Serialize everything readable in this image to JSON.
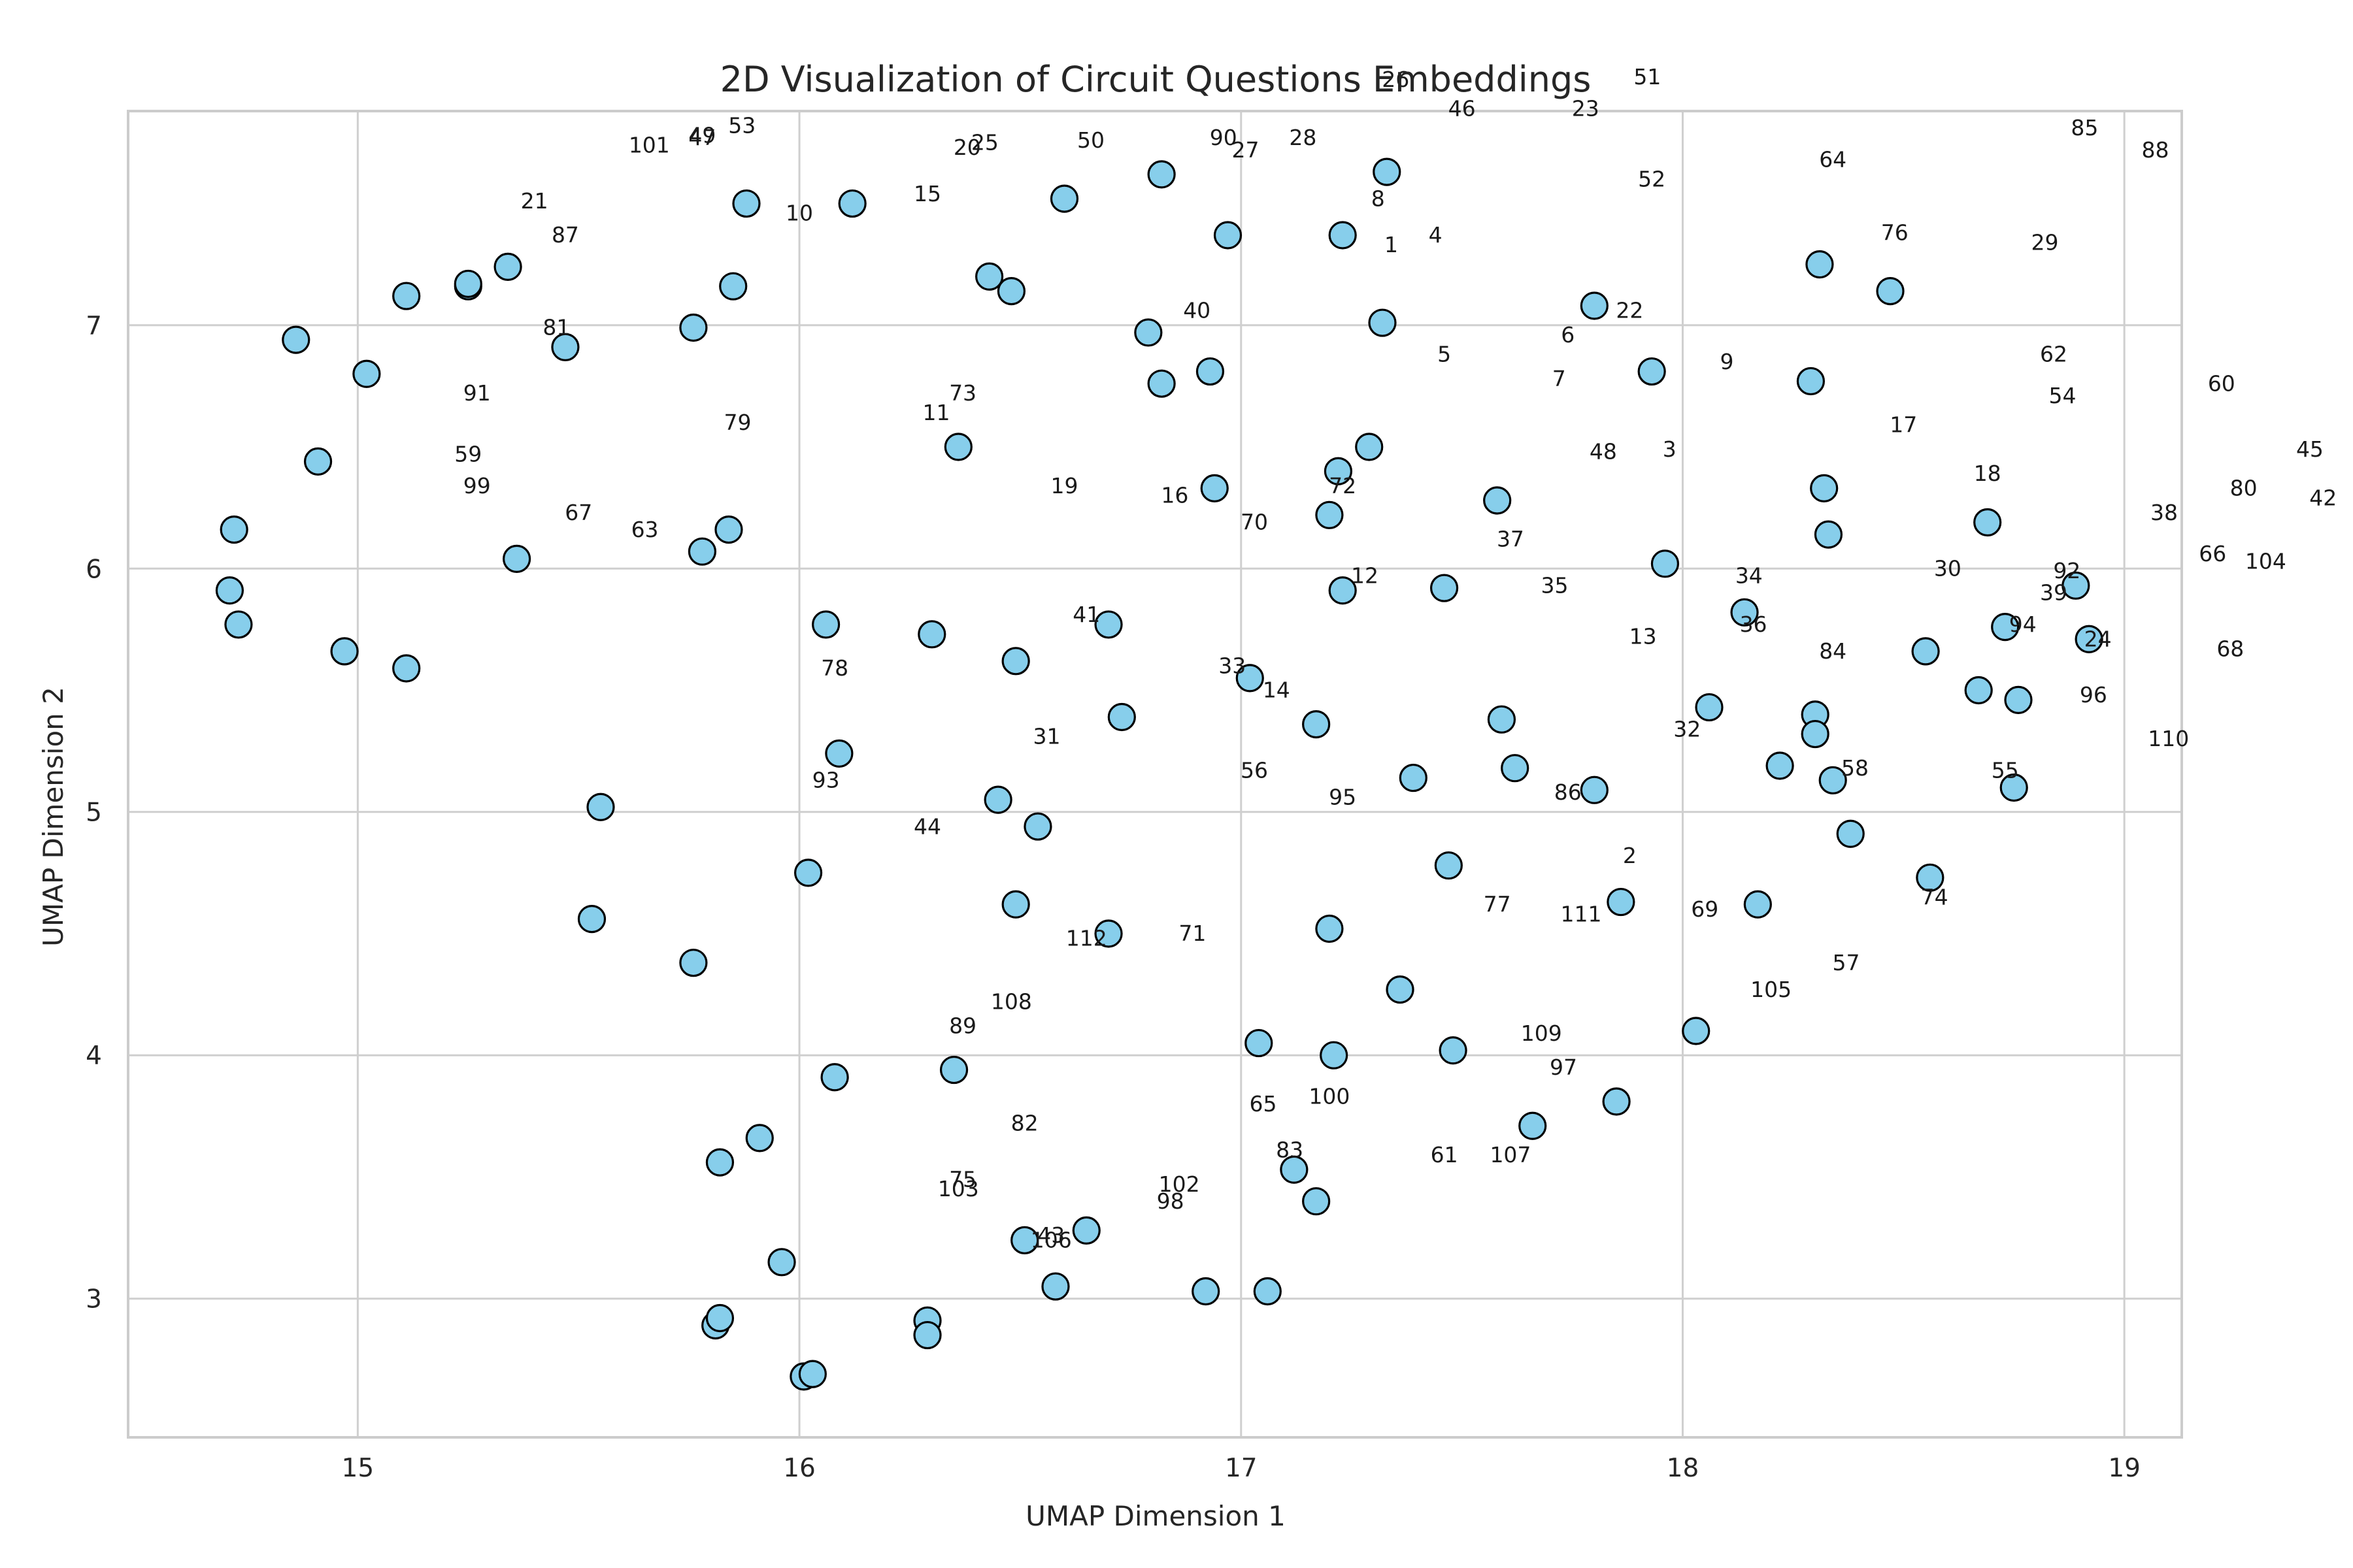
{
  "chart_data": {
    "type": "scatter",
    "title": "2D Visualization of Circuit Questions Embeddings",
    "xlabel": "UMAP Dimension 1",
    "ylabel": "UMAP Dimension 2",
    "xlim": [
      14.48,
      19.13
    ],
    "ylim": [
      2.43,
      7.88
    ],
    "xticks": [
      15,
      16,
      17,
      18,
      19
    ],
    "yticks": [
      3,
      4,
      5,
      6,
      7
    ],
    "grid": true,
    "colors": {
      "marker_fill": "#87ceeb",
      "marker_edge": "#000000",
      "grid": "#cfcfcf",
      "frame": "#cccccc"
    },
    "points": [
      {
        "x": 14.71,
        "y": 5.91
      },
      {
        "x": 14.72,
        "y": 6.16
      },
      {
        "x": 14.73,
        "y": 5.77
      },
      {
        "x": 14.86,
        "y": 6.94
      },
      {
        "x": 14.91,
        "y": 6.44
      },
      {
        "x": 14.97,
        "y": 5.66
      },
      {
        "x": 15.02,
        "y": 6.8
      },
      {
        "x": 15.11,
        "y": 5.59
      },
      {
        "x": 15.11,
        "y": 7.12
      },
      {
        "x": 15.25,
        "y": 7.16
      },
      {
        "x": 15.25,
        "y": 7.17
      },
      {
        "x": 15.34,
        "y": 7.24
      },
      {
        "x": 15.36,
        "y": 6.04
      },
      {
        "x": 15.47,
        "y": 6.91
      },
      {
        "x": 15.53,
        "y": 4.56
      },
      {
        "x": 15.55,
        "y": 5.02
      },
      {
        "x": 15.76,
        "y": 6.99
      },
      {
        "x": 15.76,
        "y": 4.38
      },
      {
        "x": 15.78,
        "y": 6.07
      },
      {
        "x": 15.81,
        "y": 2.89
      },
      {
        "x": 15.82,
        "y": 2.92
      },
      {
        "x": 15.82,
        "y": 3.56
      },
      {
        "x": 15.84,
        "y": 6.16
      },
      {
        "x": 15.85,
        "y": 7.16
      },
      {
        "x": 15.88,
        "y": 7.5
      },
      {
        "x": 15.91,
        "y": 3.66
      },
      {
        "x": 15.96,
        "y": 3.15
      },
      {
        "x": 16.01,
        "y": 2.68
      },
      {
        "x": 16.02,
        "y": 4.75
      },
      {
        "x": 16.03,
        "y": 2.69
      },
      {
        "x": 16.06,
        "y": 5.77
      },
      {
        "x": 16.08,
        "y": 3.91
      },
      {
        "x": 16.09,
        "y": 5.24
      },
      {
        "x": 16.12,
        "y": 7.5
      },
      {
        "x": 16.29,
        "y": 2.91
      },
      {
        "x": 16.29,
        "y": 2.85
      },
      {
        "x": 16.3,
        "y": 5.73
      },
      {
        "x": 16.35,
        "y": 3.94
      },
      {
        "x": 16.36,
        "y": 6.5
      },
      {
        "x": 16.43,
        "y": 7.2
      },
      {
        "x": 16.45,
        "y": 5.05
      },
      {
        "x": 16.48,
        "y": 7.14
      },
      {
        "x": 16.49,
        "y": 5.62
      },
      {
        "x": 16.49,
        "y": 4.62
      },
      {
        "x": 16.51,
        "y": 3.24
      },
      {
        "x": 16.54,
        "y": 4.94
      },
      {
        "x": 16.58,
        "y": 3.05
      },
      {
        "x": 16.6,
        "y": 7.52
      },
      {
        "x": 16.65,
        "y": 3.28
      },
      {
        "x": 16.7,
        "y": 5.77
      },
      {
        "x": 16.7,
        "y": 4.5
      },
      {
        "x": 16.73,
        "y": 5.39
      },
      {
        "x": 16.79,
        "y": 6.97
      },
      {
        "x": 16.82,
        "y": 6.76
      },
      {
        "x": 16.82,
        "y": 7.62
      },
      {
        "x": 16.92,
        "y": 3.03
      },
      {
        "x": 16.93,
        "y": 6.81
      },
      {
        "x": 16.94,
        "y": 6.33
      },
      {
        "x": 16.97,
        "y": 7.37
      },
      {
        "x": 17.02,
        "y": 5.55
      },
      {
        "x": 17.04,
        "y": 4.05
      },
      {
        "x": 17.06,
        "y": 3.03
      },
      {
        "x": 17.12,
        "y": 3.53
      },
      {
        "x": 17.17,
        "y": 5.36
      },
      {
        "x": 17.17,
        "y": 3.4
      },
      {
        "x": 17.2,
        "y": 6.22
      },
      {
        "x": 17.2,
        "y": 4.52
      },
      {
        "x": 17.21,
        "y": 4.0
      },
      {
        "x": 17.22,
        "y": 6.4
      },
      {
        "x": 17.23,
        "y": 5.91
      },
      {
        "x": 17.23,
        "y": 7.37
      },
      {
        "x": 17.29,
        "y": 6.5
      },
      {
        "x": 17.32,
        "y": 7.01
      },
      {
        "x": 17.33,
        "y": 7.63
      },
      {
        "x": 17.36,
        "y": 4.27
      },
      {
        "x": 17.39,
        "y": 5.14
      },
      {
        "x": 17.46,
        "y": 5.92
      },
      {
        "x": 17.47,
        "y": 4.78
      },
      {
        "x": 17.48,
        "y": 4.02
      },
      {
        "x": 17.58,
        "y": 6.28
      },
      {
        "x": 17.59,
        "y": 5.38
      },
      {
        "x": 17.62,
        "y": 5.18
      },
      {
        "x": 17.66,
        "y": 3.71
      },
      {
        "x": 17.8,
        "y": 5.09
      },
      {
        "x": 17.8,
        "y": 7.08
      },
      {
        "x": 17.85,
        "y": 3.81
      },
      {
        "x": 17.86,
        "y": 4.63
      },
      {
        "x": 17.93,
        "y": 6.81
      },
      {
        "x": 17.96,
        "y": 6.02
      },
      {
        "x": 18.03,
        "y": 4.1
      },
      {
        "x": 18.06,
        "y": 5.43
      },
      {
        "x": 18.14,
        "y": 5.82
      },
      {
        "x": 18.17,
        "y": 4.62
      },
      {
        "x": 18.22,
        "y": 5.19
      },
      {
        "x": 18.29,
        "y": 6.77
      },
      {
        "x": 18.3,
        "y": 5.4
      },
      {
        "x": 18.3,
        "y": 5.32
      },
      {
        "x": 18.31,
        "y": 7.25
      },
      {
        "x": 18.32,
        "y": 6.33
      },
      {
        "x": 18.33,
        "y": 6.14
      },
      {
        "x": 18.34,
        "y": 5.13
      },
      {
        "x": 18.38,
        "y": 4.91
      },
      {
        "x": 18.47,
        "y": 7.14
      },
      {
        "x": 18.55,
        "y": 5.66
      },
      {
        "x": 18.56,
        "y": 4.73
      },
      {
        "x": 18.67,
        "y": 5.5
      },
      {
        "x": 18.69,
        "y": 6.19
      },
      {
        "x": 18.73,
        "y": 5.76
      },
      {
        "x": 18.75,
        "y": 5.1
      },
      {
        "x": 18.76,
        "y": 5.46
      },
      {
        "x": 18.89,
        "y": 5.93
      },
      {
        "x": 18.92,
        "y": 5.71
      }
    ],
    "annotations": [
      {
        "text": "25",
        "x": 16.42,
        "y": 7.72
      },
      {
        "text": "50",
        "x": 16.66,
        "y": 7.73
      },
      {
        "text": "28",
        "x": 17.14,
        "y": 7.74
      },
      {
        "text": "26",
        "x": 17.35,
        "y": 7.98
      },
      {
        "text": "51",
        "x": 17.92,
        "y": 7.99
      },
      {
        "text": "46",
        "x": 17.5,
        "y": 7.86
      },
      {
        "text": "23",
        "x": 17.78,
        "y": 7.86
      },
      {
        "text": "53",
        "x": 15.87,
        "y": 7.79
      },
      {
        "text": "49",
        "x": 15.78,
        "y": 7.75
      },
      {
        "text": "47",
        "x": 15.78,
        "y": 7.74
      },
      {
        "text": "101",
        "x": 15.66,
        "y": 7.71
      },
      {
        "text": "20",
        "x": 16.38,
        "y": 7.7
      },
      {
        "text": "90",
        "x": 16.96,
        "y": 7.74
      },
      {
        "text": "27",
        "x": 17.01,
        "y": 7.69
      },
      {
        "text": "85",
        "x": 18.91,
        "y": 7.78
      },
      {
        "text": "88",
        "x": 19.07,
        "y": 7.69
      },
      {
        "text": "64",
        "x": 18.34,
        "y": 7.65
      },
      {
        "text": "52",
        "x": 17.93,
        "y": 7.57
      },
      {
        "text": "21",
        "x": 15.4,
        "y": 7.48
      },
      {
        "text": "15",
        "x": 16.29,
        "y": 7.51
      },
      {
        "text": "10",
        "x": 16.0,
        "y": 7.43
      },
      {
        "text": "8",
        "x": 17.31,
        "y": 7.49
      },
      {
        "text": "87",
        "x": 15.47,
        "y": 7.34
      },
      {
        "text": "76",
        "x": 18.48,
        "y": 7.35
      },
      {
        "text": "4",
        "x": 17.44,
        "y": 7.34
      },
      {
        "text": "29",
        "x": 18.82,
        "y": 7.31
      },
      {
        "text": "1",
        "x": 17.34,
        "y": 7.3
      },
      {
        "text": "40",
        "x": 16.9,
        "y": 7.03
      },
      {
        "text": "22",
        "x": 17.88,
        "y": 7.03
      },
      {
        "text": "81",
        "x": 15.45,
        "y": 6.96
      },
      {
        "text": "6",
        "x": 17.74,
        "y": 6.93
      },
      {
        "text": "5",
        "x": 17.46,
        "y": 6.85
      },
      {
        "text": "62",
        "x": 18.84,
        "y": 6.85
      },
      {
        "text": "9",
        "x": 18.1,
        "y": 6.82
      },
      {
        "text": "91",
        "x": 15.27,
        "y": 6.69
      },
      {
        "text": "7",
        "x": 17.72,
        "y": 6.75
      },
      {
        "text": "73",
        "x": 16.37,
        "y": 6.69
      },
      {
        "text": "60",
        "x": 19.22,
        "y": 6.73
      },
      {
        "text": "54",
        "x": 18.86,
        "y": 6.68
      },
      {
        "text": "11",
        "x": 16.31,
        "y": 6.61
      },
      {
        "text": "79",
        "x": 15.86,
        "y": 6.57
      },
      {
        "text": "17",
        "x": 18.5,
        "y": 6.56
      },
      {
        "text": "45",
        "x": 19.42,
        "y": 6.46
      },
      {
        "text": "3",
        "x": 17.97,
        "y": 6.46
      },
      {
        "text": "59",
        "x": 15.25,
        "y": 6.44
      },
      {
        "text": "48",
        "x": 17.82,
        "y": 6.45
      },
      {
        "text": "18",
        "x": 18.69,
        "y": 6.36
      },
      {
        "text": "99",
        "x": 15.27,
        "y": 6.31
      },
      {
        "text": "19",
        "x": 16.6,
        "y": 6.31
      },
      {
        "text": "80",
        "x": 19.27,
        "y": 6.3
      },
      {
        "text": "72",
        "x": 17.23,
        "y": 6.31
      },
      {
        "text": "42",
        "x": 19.45,
        "y": 6.26
      },
      {
        "text": "16",
        "x": 16.85,
        "y": 6.27
      },
      {
        "text": "67",
        "x": 15.5,
        "y": 6.2
      },
      {
        "text": "38",
        "x": 19.09,
        "y": 6.2
      },
      {
        "text": "70",
        "x": 17.03,
        "y": 6.16
      },
      {
        "text": "63",
        "x": 15.65,
        "y": 6.13
      },
      {
        "text": "37",
        "x": 17.61,
        "y": 6.09
      },
      {
        "text": "66",
        "x": 19.2,
        "y": 6.03
      },
      {
        "text": "104",
        "x": 19.32,
        "y": 6.0
      },
      {
        "text": "30",
        "x": 18.6,
        "y": 5.97
      },
      {
        "text": "92",
        "x": 18.87,
        "y": 5.96
      },
      {
        "text": "12",
        "x": 17.28,
        "y": 5.94
      },
      {
        "text": "34",
        "x": 18.15,
        "y": 5.94
      },
      {
        "text": "35",
        "x": 17.71,
        "y": 5.9
      },
      {
        "text": "39",
        "x": 18.84,
        "y": 5.87
      },
      {
        "text": "41",
        "x": 16.65,
        "y": 5.78
      },
      {
        "text": "94",
        "x": 18.77,
        "y": 5.74
      },
      {
        "text": "36",
        "x": 18.16,
        "y": 5.74
      },
      {
        "text": "13",
        "x": 17.91,
        "y": 5.69
      },
      {
        "text": "24",
        "x": 18.94,
        "y": 5.68
      },
      {
        "text": "68",
        "x": 19.24,
        "y": 5.64
      },
      {
        "text": "84",
        "x": 18.34,
        "y": 5.63
      },
      {
        "text": "33",
        "x": 16.98,
        "y": 5.57
      },
      {
        "text": "78",
        "x": 16.08,
        "y": 5.56
      },
      {
        "text": "14",
        "x": 17.08,
        "y": 5.47
      },
      {
        "text": "96",
        "x": 18.93,
        "y": 5.45
      },
      {
        "text": "31",
        "x": 16.56,
        "y": 5.28
      },
      {
        "text": "32",
        "x": 18.01,
        "y": 5.31
      },
      {
        "text": "110",
        "x": 19.1,
        "y": 5.27
      },
      {
        "text": "58",
        "x": 18.39,
        "y": 5.15
      },
      {
        "text": "55",
        "x": 18.73,
        "y": 5.14
      },
      {
        "text": "56",
        "x": 17.03,
        "y": 5.14
      },
      {
        "text": "93",
        "x": 16.06,
        "y": 5.1
      },
      {
        "text": "86",
        "x": 17.74,
        "y": 5.05
      },
      {
        "text": "95",
        "x": 17.23,
        "y": 5.03
      },
      {
        "text": "44",
        "x": 16.29,
        "y": 4.91
      },
      {
        "text": "2",
        "x": 17.88,
        "y": 4.79
      },
      {
        "text": "74",
        "x": 18.57,
        "y": 4.62
      },
      {
        "text": "77",
        "x": 17.58,
        "y": 4.59
      },
      {
        "text": "111",
        "x": 17.77,
        "y": 4.55
      },
      {
        "text": "69",
        "x": 18.05,
        "y": 4.57
      },
      {
        "text": "71",
        "x": 16.89,
        "y": 4.47
      },
      {
        "text": "112",
        "x": 16.65,
        "y": 4.45
      },
      {
        "text": "57",
        "x": 18.37,
        "y": 4.35
      },
      {
        "text": "105",
        "x": 18.2,
        "y": 4.24
      },
      {
        "text": "108",
        "x": 16.48,
        "y": 4.19
      },
      {
        "text": "89",
        "x": 16.37,
        "y": 4.09
      },
      {
        "text": "109",
        "x": 17.68,
        "y": 4.06
      },
      {
        "text": "97",
        "x": 17.73,
        "y": 3.92
      },
      {
        "text": "100",
        "x": 17.2,
        "y": 3.8
      },
      {
        "text": "65",
        "x": 17.05,
        "y": 3.77
      },
      {
        "text": "82",
        "x": 16.51,
        "y": 3.69
      },
      {
        "text": "83",
        "x": 17.11,
        "y": 3.58
      },
      {
        "text": "107",
        "x": 17.61,
        "y": 3.56
      },
      {
        "text": "61",
        "x": 17.46,
        "y": 3.56
      },
      {
        "text": "75",
        "x": 16.37,
        "y": 3.46
      },
      {
        "text": "102",
        "x": 16.86,
        "y": 3.44
      },
      {
        "text": "103",
        "x": 16.36,
        "y": 3.42
      },
      {
        "text": "98",
        "x": 16.84,
        "y": 3.37
      },
      {
        "text": "43",
        "x": 16.57,
        "y": 3.23
      },
      {
        "text": "106",
        "x": 16.57,
        "y": 3.21
      }
    ]
  }
}
